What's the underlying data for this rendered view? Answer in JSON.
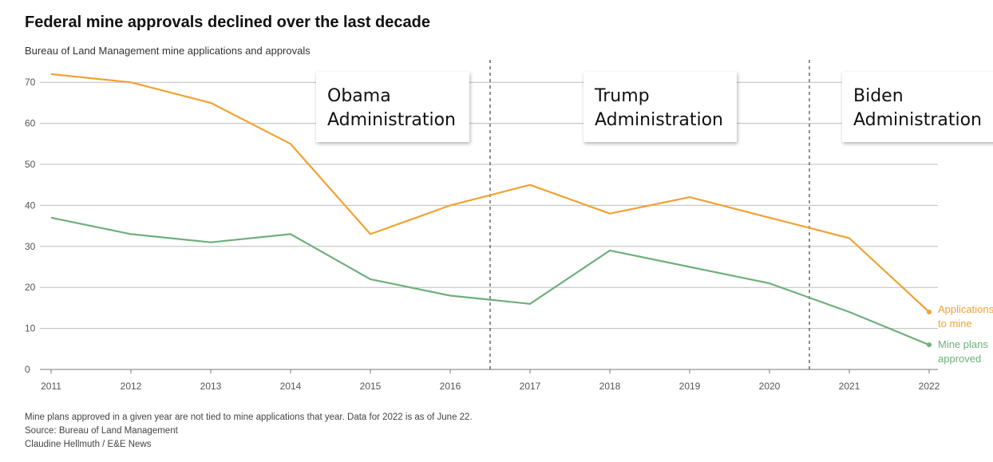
{
  "title": "Federal mine approvals declined over the last decade",
  "subtitle": "Bureau of Land Management mine applications and approvals",
  "footer": {
    "note": "Mine plans approved in a given year are not tied to mine applications that year. Data for 2022 is as of June 22.",
    "source": "Source: Bureau of Land Management",
    "credit": "Claudine Hellmuth / E&E News"
  },
  "chart_data": {
    "type": "line",
    "title": "Federal mine approvals declined over the last decade",
    "subtitle": "Bureau of Land Management mine applications and approvals",
    "xlabel": "",
    "ylabel": "",
    "x": [
      2011,
      2012,
      2013,
      2014,
      2015,
      2016,
      2017,
      2018,
      2019,
      2020,
      2021,
      2022
    ],
    "ylim": [
      0,
      70
    ],
    "yticks": [
      0,
      10,
      20,
      30,
      40,
      50,
      60,
      70
    ],
    "grid": true,
    "series": [
      {
        "name": "Applications to mine",
        "label_lines": [
          "Applications",
          "to mine"
        ],
        "color": "#F0A232",
        "values": [
          72,
          70,
          65,
          55,
          33,
          40,
          45,
          38,
          42,
          37,
          32,
          14
        ]
      },
      {
        "name": "Mine plans approved",
        "label_lines": [
          "Mine plans",
          "approved"
        ],
        "color": "#6FAF7C",
        "values": [
          37,
          33,
          31,
          33,
          22,
          18,
          16,
          29,
          25,
          21,
          14,
          6
        ]
      }
    ],
    "dividers": [
      2016.5,
      2020.5
    ],
    "annotations": [
      {
        "lines": [
          "Obama",
          "Administration"
        ]
      },
      {
        "lines": [
          "Trump",
          "Administration"
        ]
      },
      {
        "lines": [
          "Biden",
          "Administration"
        ]
      }
    ]
  }
}
